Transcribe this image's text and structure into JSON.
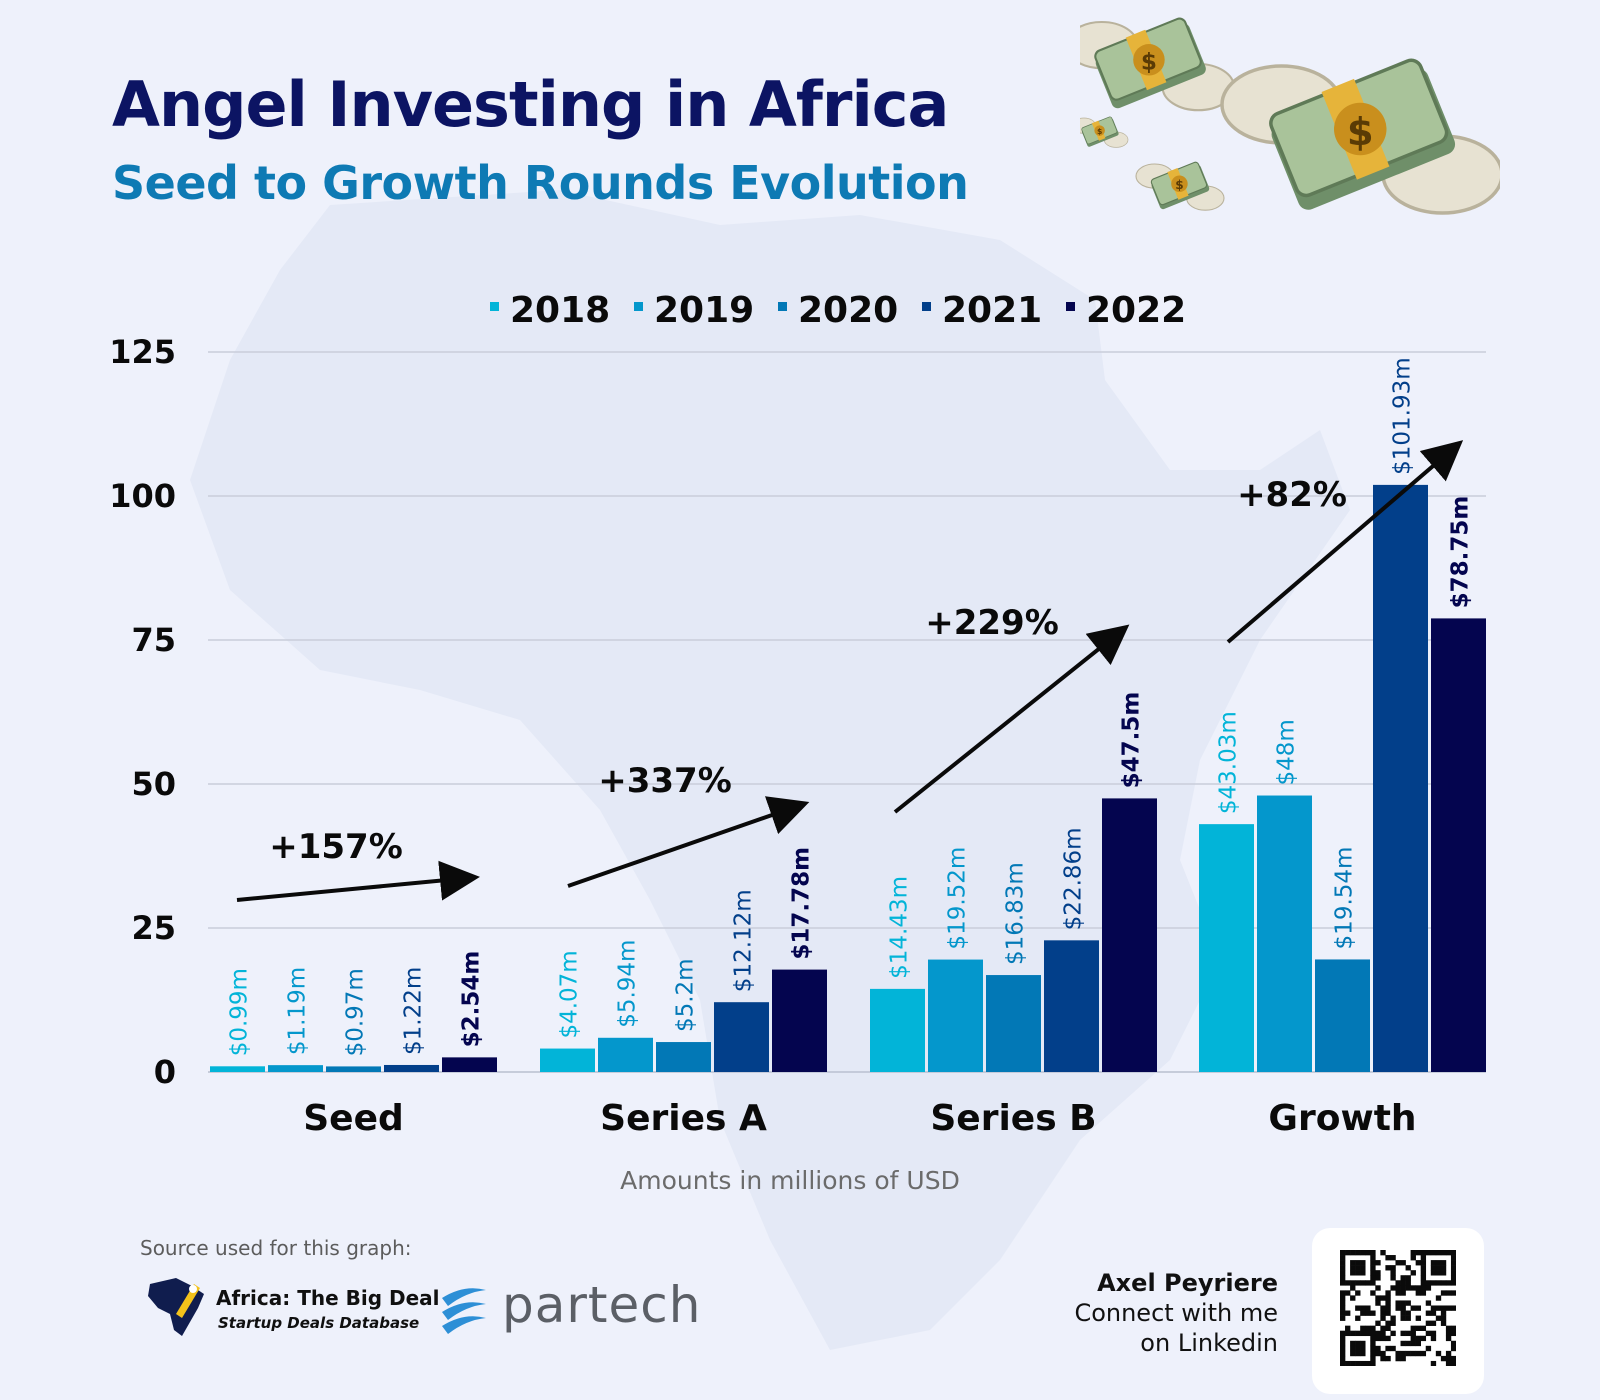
{
  "header": {
    "title": "Angel Investing in Africa",
    "subtitle": "Seed to Growth Rounds Evolution"
  },
  "chart_data": {
    "type": "bar",
    "title": "Angel Investing in Africa",
    "subtitle": "Seed to Growth Rounds Evolution",
    "xlabel": "Amounts in millions of USD",
    "ylabel": "",
    "categories": [
      "Seed",
      "Series A",
      "Series B",
      "Growth"
    ],
    "ylim": [
      0,
      125
    ],
    "yticks": [
      0,
      25,
      50,
      75,
      100,
      125
    ],
    "grid": true,
    "legend_position": "top",
    "series": [
      {
        "name": "2018",
        "color": "#02b4d8",
        "values": [
          0.99,
          4.07,
          14.43,
          43.03
        ],
        "labels": [
          "$0.99m",
          "$4.07m",
          "$14.43m",
          "$43.03m"
        ]
      },
      {
        "name": "2019",
        "color": "#0497cc",
        "values": [
          1.19,
          5.94,
          19.52,
          48
        ],
        "labels": [
          "$1.19m",
          "$5.94m",
          "$19.52m",
          "$48m"
        ]
      },
      {
        "name": "2020",
        "color": "#0278b6",
        "values": [
          0.97,
          5.2,
          16.83,
          19.54
        ],
        "labels": [
          "$0.97m",
          "$5.2m",
          "$16.83m",
          "$19.54m"
        ]
      },
      {
        "name": "2021",
        "color": "#023f8a",
        "values": [
          1.22,
          12.12,
          22.86,
          101.93
        ],
        "labels": [
          "$1.22m",
          "$12.12m",
          "$22.86m",
          "$101.93m"
        ]
      },
      {
        "name": "2022",
        "color": "#04054f",
        "values": [
          2.54,
          17.78,
          47.5,
          78.75
        ],
        "labels": [
          "$2.54m",
          "$17.78m",
          "$47.5m",
          "$78.75m"
        ]
      }
    ],
    "annotations": [
      {
        "text": "+157%",
        "category": "Seed"
      },
      {
        "text": "+337%",
        "category": "Series A"
      },
      {
        "text": "+229%",
        "category": "Series B"
      },
      {
        "text": "+82%",
        "category": "Growth"
      }
    ]
  },
  "footer": {
    "source_title": "Source used for this graph:",
    "source1_name": "Africa: The Big Deal",
    "source1_tagline": "Startup Deals Database",
    "source2_name": "partech",
    "author_name": "Axel Peyriere",
    "author_line1": "Connect with me",
    "author_line2": "on Linkedin"
  },
  "colors": {
    "background": "#eef1fb",
    "title": "#0c1463",
    "subtitle": "#0e7ab4"
  },
  "icons": [
    "flying-money-icon",
    "africa-map-icon",
    "qr-code-icon"
  ]
}
